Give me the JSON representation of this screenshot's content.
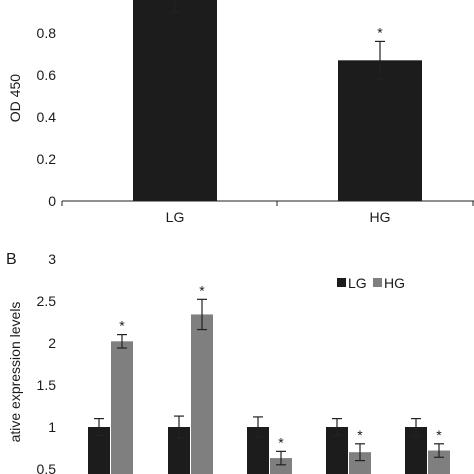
{
  "chart_data": [
    {
      "type": "bar",
      "panel_label": "",
      "ylabel": "OD 450",
      "ylim": [
        0,
        1.0
      ],
      "yticks": [
        "0",
        "0.2",
        "0.4",
        "0.6",
        "0.8"
      ],
      "categories": [
        "LG",
        "HG"
      ],
      "values": [
        0.98,
        0.67
      ],
      "errors": [
        0.08,
        0.09
      ],
      "significance": [
        "",
        "*"
      ],
      "bar_color": "#1c1c1c"
    },
    {
      "type": "bar",
      "panel_label": "B",
      "ylabel": "ative expression levels",
      "ylim": [
        0,
        3
      ],
      "yticks": [
        "0.5",
        "1",
        "1.5",
        "2",
        "2.5",
        "3"
      ],
      "groups": 5,
      "series": [
        {
          "name": "LG",
          "values": [
            1.0,
            1.0,
            1.0,
            1.0,
            1.0
          ],
          "errors": [
            0.1,
            0.13,
            0.12,
            0.1,
            0.1
          ],
          "color": "#1c1c1c"
        },
        {
          "name": "HG",
          "values": [
            2.02,
            2.34,
            0.63,
            0.7,
            0.72
          ],
          "errors": [
            0.08,
            0.18,
            0.08,
            0.1,
            0.08
          ],
          "color": "#7f7f7f"
        }
      ],
      "significance": [
        "*",
        "*",
        "*",
        "*",
        "*"
      ],
      "legend_position": "top-right"
    }
  ]
}
